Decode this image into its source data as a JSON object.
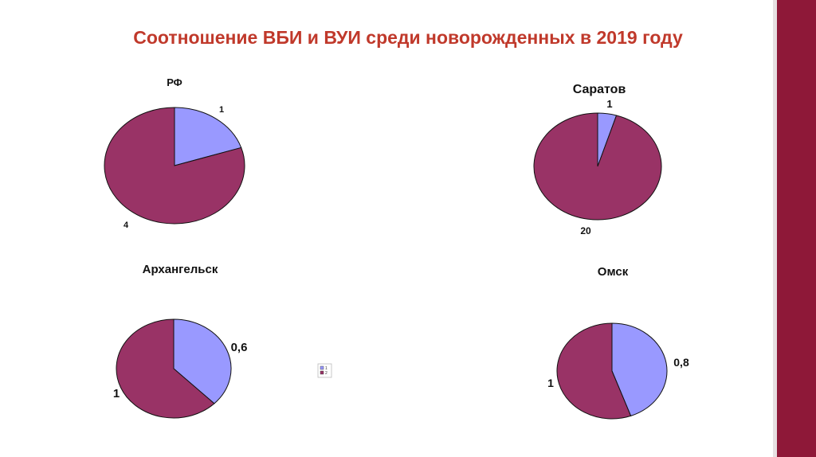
{
  "title": "Соотношение ВБИ и ВУИ среди  новорожденных в 2019 году",
  "colors": {
    "slice1": "#9999ff",
    "slice2": "#993366",
    "title": "#c0392b",
    "sidebar": "#8e1838"
  },
  "legend": {
    "items": [
      "1",
      "2"
    ]
  },
  "chart_data": [
    {
      "type": "pie",
      "title": "РФ",
      "categories": [
        "1",
        "2"
      ],
      "values": [
        1,
        4
      ],
      "labels": [
        "1",
        "4"
      ]
    },
    {
      "type": "pie",
      "title": "Саратов",
      "categories": [
        "1",
        "2"
      ],
      "values": [
        1,
        20
      ],
      "labels": [
        "1",
        "20"
      ]
    },
    {
      "type": "pie",
      "title": "Архангельск",
      "categories": [
        "1",
        "2"
      ],
      "values": [
        0.6,
        1
      ],
      "labels": [
        "0,6",
        "1"
      ]
    },
    {
      "type": "pie",
      "title": "Омск",
      "categories": [
        "1",
        "2"
      ],
      "values": [
        0.8,
        1
      ],
      "labels": [
        "0,8",
        "1"
      ]
    }
  ]
}
